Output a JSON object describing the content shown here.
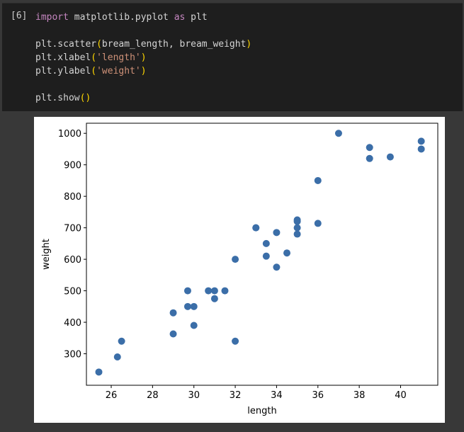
{
  "cell": {
    "prompt": "[6]",
    "lines": [
      [
        {
          "t": "import",
          "c": "kw"
        },
        {
          "t": " matplotlib.pyplot ",
          "c": ""
        },
        {
          "t": "as",
          "c": "kw"
        },
        {
          "t": " plt",
          "c": ""
        }
      ],
      [],
      [
        {
          "t": "plt.scatter",
          "c": ""
        },
        {
          "t": "(",
          "c": "par"
        },
        {
          "t": "bream_length, bream_weight",
          "c": ""
        },
        {
          "t": ")",
          "c": "par"
        }
      ],
      [
        {
          "t": "plt.xlabel",
          "c": ""
        },
        {
          "t": "(",
          "c": "par"
        },
        {
          "t": "'length'",
          "c": "str"
        },
        {
          "t": ")",
          "c": "par"
        }
      ],
      [
        {
          "t": "plt.ylabel",
          "c": ""
        },
        {
          "t": "(",
          "c": "par"
        },
        {
          "t": "'weight'",
          "c": "str"
        },
        {
          "t": ")",
          "c": "par"
        }
      ],
      [],
      [
        {
          "t": "plt.show",
          "c": ""
        },
        {
          "t": "()",
          "c": "par"
        }
      ]
    ]
  },
  "chart_data": {
    "type": "scatter",
    "title": "",
    "xlabel": "length",
    "ylabel": "weight",
    "xlim": [
      24.8,
      41.8
    ],
    "ylim": [
      200,
      1032
    ],
    "xticks": [
      26,
      28,
      30,
      32,
      34,
      36,
      38,
      40
    ],
    "yticks": [
      300,
      400,
      500,
      600,
      700,
      800,
      900,
      1000
    ],
    "grid": false,
    "color": "#3b6ea8",
    "points": [
      [
        25.4,
        242
      ],
      [
        26.3,
        290
      ],
      [
        26.5,
        340
      ],
      [
        29.0,
        363
      ],
      [
        29.0,
        430
      ],
      [
        29.7,
        450
      ],
      [
        29.7,
        500
      ],
      [
        30.0,
        390
      ],
      [
        30.0,
        450
      ],
      [
        30.7,
        500
      ],
      [
        31.0,
        475
      ],
      [
        31.0,
        500
      ],
      [
        31.5,
        500
      ],
      [
        32.0,
        340
      ],
      [
        32.0,
        600
      ],
      [
        33.0,
        700
      ],
      [
        33.0,
        700
      ],
      [
        33.5,
        610
      ],
      [
        33.5,
        650
      ],
      [
        34.0,
        575
      ],
      [
        34.0,
        685
      ],
      [
        34.5,
        620
      ],
      [
        35.0,
        680
      ],
      [
        35.0,
        700
      ],
      [
        35.0,
        725
      ],
      [
        35.0,
        720
      ],
      [
        36.0,
        714
      ],
      [
        36.0,
        850
      ],
      [
        37.0,
        1000
      ],
      [
        38.5,
        920
      ],
      [
        38.5,
        955
      ],
      [
        39.5,
        925
      ],
      [
        41.0,
        975
      ],
      [
        41.0,
        950
      ]
    ]
  }
}
